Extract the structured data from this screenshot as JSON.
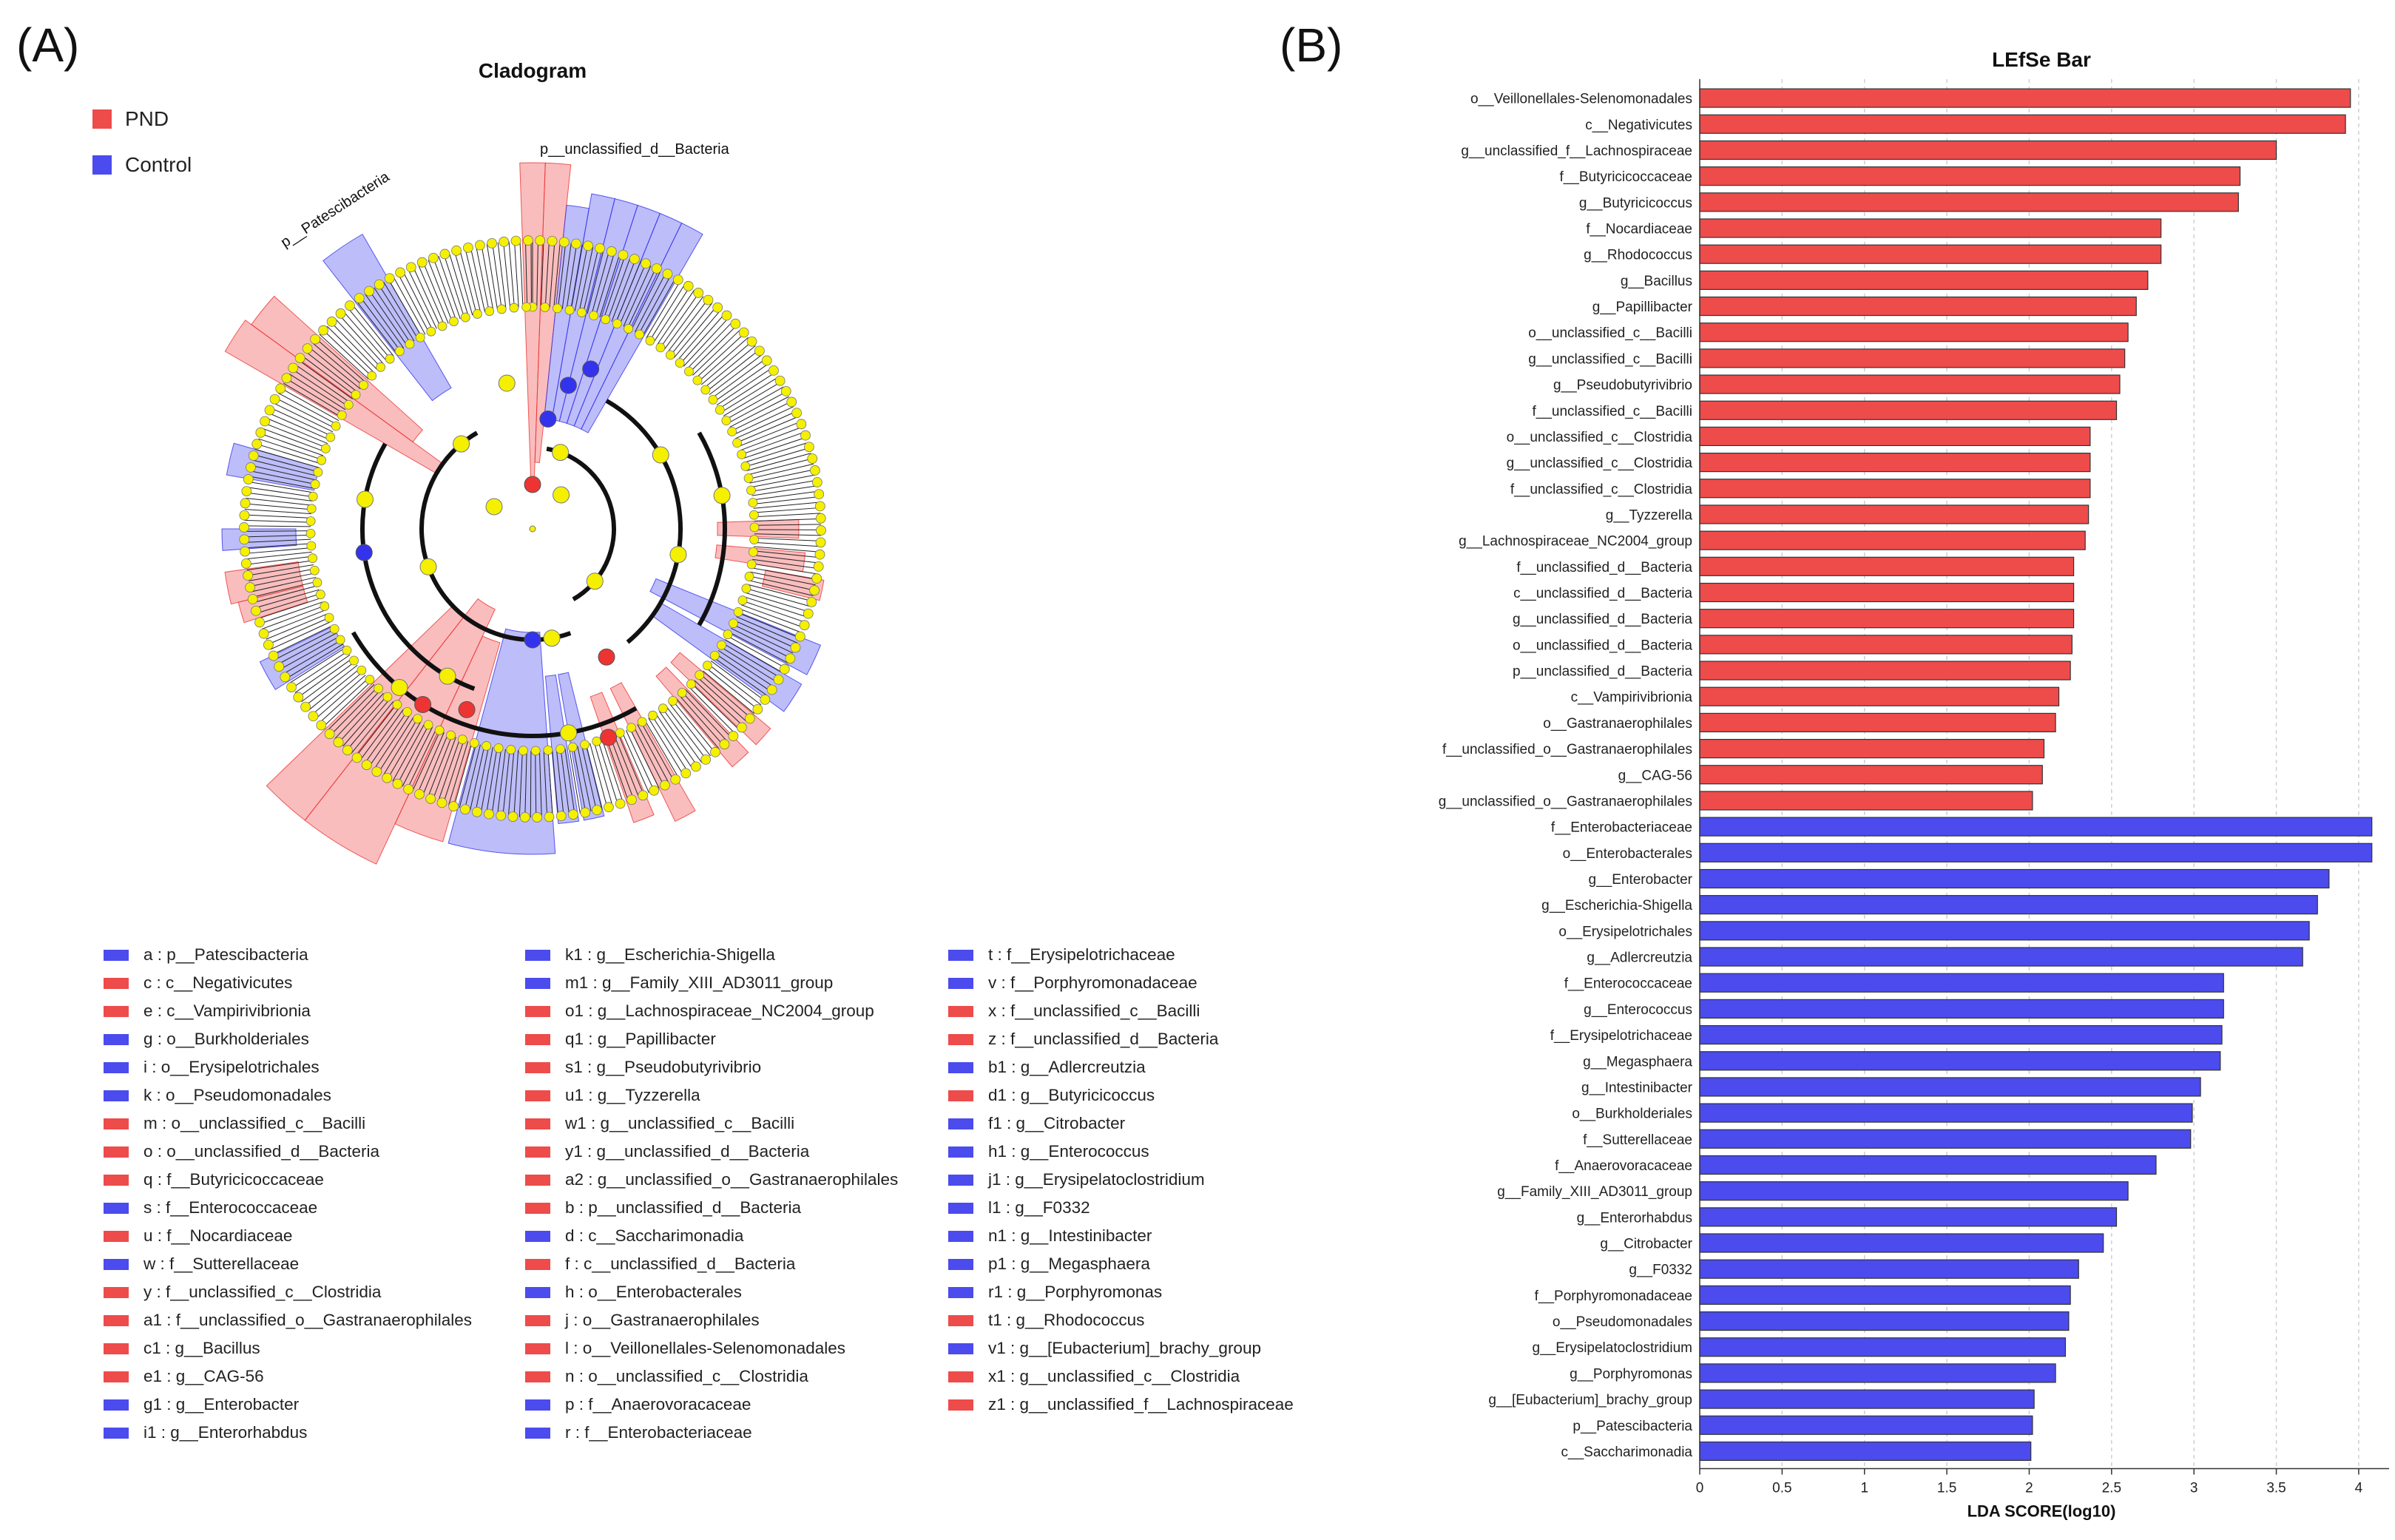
{
  "panelA": {
    "label": "(A)",
    "title": "Cladogram",
    "groups": [
      {
        "name": "PND",
        "color": "#ee4b4b"
      },
      {
        "name": "Control",
        "color": "#4b4bee"
      }
    ],
    "annotations": {
      "bacteria": "p__unclassified_d__Bacteria",
      "patescibacteria": "p__Patescibacteria"
    },
    "key": [
      [
        {
          "text": "a : p__Patescibacteria",
          "g": "Control"
        },
        {
          "text": "c : c__Negativicutes",
          "g": "PND"
        },
        {
          "text": "e : c__Vampirivibrionia",
          "g": "PND"
        },
        {
          "text": "g : o__Burkholderiales",
          "g": "Control"
        },
        {
          "text": "i : o__Erysipelotrichales",
          "g": "Control"
        },
        {
          "text": "k : o__Pseudomonadales",
          "g": "Control"
        },
        {
          "text": "m : o__unclassified_c__Bacilli",
          "g": "PND"
        },
        {
          "text": "o : o__unclassified_d__Bacteria",
          "g": "PND"
        },
        {
          "text": "q : f__Butyricicoccaceae",
          "g": "PND"
        },
        {
          "text": "s : f__Enterococcaceae",
          "g": "Control"
        },
        {
          "text": "u : f__Nocardiaceae",
          "g": "PND"
        },
        {
          "text": "w : f__Sutterellaceae",
          "g": "Control"
        },
        {
          "text": "y : f__unclassified_c__Clostridia",
          "g": "PND"
        },
        {
          "text": "a1 : f__unclassified_o__Gastranaerophilales",
          "g": "PND"
        },
        {
          "text": "c1 : g__Bacillus",
          "g": "PND"
        },
        {
          "text": "e1 : g__CAG-56",
          "g": "PND"
        },
        {
          "text": "g1 : g__Enterobacter",
          "g": "Control"
        },
        {
          "text": "i1 : g__Enterorhabdus",
          "g": "Control"
        }
      ],
      [
        {
          "text": "k1 : g__Escherichia-Shigella",
          "g": "Control"
        },
        {
          "text": "m1 : g__Family_XIII_AD3011_group",
          "g": "Control"
        },
        {
          "text": "o1 : g__Lachnospiraceae_NC2004_group",
          "g": "PND"
        },
        {
          "text": "q1 : g__Papillibacter",
          "g": "PND"
        },
        {
          "text": "s1 : g__Pseudobutyrivibrio",
          "g": "PND"
        },
        {
          "text": "u1 : g__Tyzzerella",
          "g": "PND"
        },
        {
          "text": "w1 : g__unclassified_c__Bacilli",
          "g": "PND"
        },
        {
          "text": "y1 : g__unclassified_d__Bacteria",
          "g": "PND"
        },
        {
          "text": "a2 : g__unclassified_o__Gastranaerophilales",
          "g": "PND"
        },
        {
          "text": "b : p__unclassified_d__Bacteria",
          "g": "PND"
        },
        {
          "text": "d : c__Saccharimonadia",
          "g": "Control"
        },
        {
          "text": "f : c__unclassified_d__Bacteria",
          "g": "PND"
        },
        {
          "text": "h : o__Enterobacterales",
          "g": "Control"
        },
        {
          "text": "j : o__Gastranaerophilales",
          "g": "PND"
        },
        {
          "text": "l : o__Veillonellales-Selenomonadales",
          "g": "PND"
        },
        {
          "text": "n : o__unclassified_c__Clostridia",
          "g": "PND"
        },
        {
          "text": "p : f__Anaerovoracaceae",
          "g": "Control"
        },
        {
          "text": "r : f__Enterobacteriaceae",
          "g": "Control"
        }
      ],
      [
        {
          "text": "t : f__Erysipelotrichaceae",
          "g": "Control"
        },
        {
          "text": "v : f__Porphyromonadaceae",
          "g": "Control"
        },
        {
          "text": "x : f__unclassified_c__Bacilli",
          "g": "PND"
        },
        {
          "text": "z : f__unclassified_d__Bacteria",
          "g": "PND"
        },
        {
          "text": "b1 : g__Adlercreutzia",
          "g": "Control"
        },
        {
          "text": "d1 : g__Butyricicoccus",
          "g": "PND"
        },
        {
          "text": "f1 : g__Citrobacter",
          "g": "Control"
        },
        {
          "text": "h1 : g__Enterococcus",
          "g": "Control"
        },
        {
          "text": "j1 : g__Erysipelatoclostridium",
          "g": "Control"
        },
        {
          "text": "l1 : g__F0332",
          "g": "Control"
        },
        {
          "text": "n1 : g__Intestinibacter",
          "g": "Control"
        },
        {
          "text": "p1 : g__Megasphaera",
          "g": "Control"
        },
        {
          "text": "r1 : g__Porphyromonas",
          "g": "Control"
        },
        {
          "text": "t1 : g__Rhodococcus",
          "g": "PND"
        },
        {
          "text": "v1 : g__[Eubacterium]_brachy_group",
          "g": "Control"
        },
        {
          "text": "x1 : g__unclassified_c__Clostridia",
          "g": "PND"
        },
        {
          "text": "z1 : g__unclassified_f__Lachnospiraceae",
          "g": "PND"
        }
      ]
    ]
  },
  "chart_data": {
    "label": "(B)",
    "type": "bar",
    "orientation": "horizontal",
    "title": "LEfSe Bar",
    "xlabel": "LDA SCORE(log10)",
    "xlim": [
      0,
      4.4
    ],
    "xticks": [
      0,
      0.5,
      1,
      1.5,
      2,
      2.5,
      3,
      3.5,
      4
    ],
    "grid": "vertical-dashed",
    "colors": {
      "PND": "#ee4b4b",
      "Control": "#4b4bee"
    },
    "bars": [
      {
        "name": "o__Veillonellales-Selenomonadales",
        "value": 3.95,
        "group": "PND"
      },
      {
        "name": "c__Negativicutes",
        "value": 3.92,
        "group": "PND"
      },
      {
        "name": "g__unclassified_f__Lachnospiraceae",
        "value": 3.5,
        "group": "PND"
      },
      {
        "name": "f__Butyricicoccaceae",
        "value": 3.28,
        "group": "PND"
      },
      {
        "name": "g__Butyricicoccus",
        "value": 3.27,
        "group": "PND"
      },
      {
        "name": "f__Nocardiaceae",
        "value": 2.8,
        "group": "PND"
      },
      {
        "name": "g__Rhodococcus",
        "value": 2.8,
        "group": "PND"
      },
      {
        "name": "g__Bacillus",
        "value": 2.72,
        "group": "PND"
      },
      {
        "name": "g__Papillibacter",
        "value": 2.65,
        "group": "PND"
      },
      {
        "name": "o__unclassified_c__Bacilli",
        "value": 2.6,
        "group": "PND"
      },
      {
        "name": "g__unclassified_c__Bacilli",
        "value": 2.58,
        "group": "PND"
      },
      {
        "name": "g__Pseudobutyrivibrio",
        "value": 2.55,
        "group": "PND"
      },
      {
        "name": "f__unclassified_c__Bacilli",
        "value": 2.53,
        "group": "PND"
      },
      {
        "name": "o__unclassified_c__Clostridia",
        "value": 2.37,
        "group": "PND"
      },
      {
        "name": "g__unclassified_c__Clostridia",
        "value": 2.37,
        "group": "PND"
      },
      {
        "name": "f__unclassified_c__Clostridia",
        "value": 2.37,
        "group": "PND"
      },
      {
        "name": "g__Tyzzerella",
        "value": 2.36,
        "group": "PND"
      },
      {
        "name": "g__Lachnospiraceae_NC2004_group",
        "value": 2.34,
        "group": "PND"
      },
      {
        "name": "f__unclassified_d__Bacteria",
        "value": 2.27,
        "group": "PND"
      },
      {
        "name": "c__unclassified_d__Bacteria",
        "value": 2.27,
        "group": "PND"
      },
      {
        "name": "g__unclassified_d__Bacteria",
        "value": 2.27,
        "group": "PND"
      },
      {
        "name": "o__unclassified_d__Bacteria",
        "value": 2.26,
        "group": "PND"
      },
      {
        "name": "p__unclassified_d__Bacteria",
        "value": 2.25,
        "group": "PND"
      },
      {
        "name": "c__Vampirivibrionia",
        "value": 2.18,
        "group": "PND"
      },
      {
        "name": "o__Gastranaerophilales",
        "value": 2.16,
        "group": "PND"
      },
      {
        "name": "f__unclassified_o__Gastranaerophilales",
        "value": 2.09,
        "group": "PND"
      },
      {
        "name": "g__CAG-56",
        "value": 2.08,
        "group": "PND"
      },
      {
        "name": "g__unclassified_o__Gastranaerophilales",
        "value": 2.02,
        "group": "PND"
      },
      {
        "name": "f__Enterobacteriaceae",
        "value": 4.08,
        "group": "Control"
      },
      {
        "name": "o__Enterobacterales",
        "value": 4.08,
        "group": "Control"
      },
      {
        "name": "g__Enterobacter",
        "value": 3.82,
        "group": "Control"
      },
      {
        "name": "g__Escherichia-Shigella",
        "value": 3.75,
        "group": "Control"
      },
      {
        "name": "o__Erysipelotrichales",
        "value": 3.7,
        "group": "Control"
      },
      {
        "name": "g__Adlercreutzia",
        "value": 3.66,
        "group": "Control"
      },
      {
        "name": "f__Enterococcaceae",
        "value": 3.18,
        "group": "Control"
      },
      {
        "name": "g__Enterococcus",
        "value": 3.18,
        "group": "Control"
      },
      {
        "name": "f__Erysipelotrichaceae",
        "value": 3.17,
        "group": "Control"
      },
      {
        "name": "g__Megasphaera",
        "value": 3.16,
        "group": "Control"
      },
      {
        "name": "g__Intestinibacter",
        "value": 3.04,
        "group": "Control"
      },
      {
        "name": "o__Burkholderiales",
        "value": 2.99,
        "group": "Control"
      },
      {
        "name": "f__Sutterellaceae",
        "value": 2.98,
        "group": "Control"
      },
      {
        "name": "f__Anaerovoracaceae",
        "value": 2.77,
        "group": "Control"
      },
      {
        "name": "g__Family_XIII_AD3011_group",
        "value": 2.6,
        "group": "Control"
      },
      {
        "name": "g__Enterorhabdus",
        "value": 2.53,
        "group": "Control"
      },
      {
        "name": "g__Citrobacter",
        "value": 2.45,
        "group": "Control"
      },
      {
        "name": "g__F0332",
        "value": 2.3,
        "group": "Control"
      },
      {
        "name": "f__Porphyromonadaceae",
        "value": 2.25,
        "group": "Control"
      },
      {
        "name": "o__Pseudomonadales",
        "value": 2.24,
        "group": "Control"
      },
      {
        "name": "g__Erysipelatoclostridium",
        "value": 2.22,
        "group": "Control"
      },
      {
        "name": "g__Porphyromonas",
        "value": 2.16,
        "group": "Control"
      },
      {
        "name": "g__[Eubacterium]_brachy_group",
        "value": 2.03,
        "group": "Control"
      },
      {
        "name": "p__Patescibacteria",
        "value": 2.02,
        "group": "Control"
      },
      {
        "name": "c__Saccharimonadia",
        "value": 2.01,
        "group": "Control"
      }
    ]
  }
}
